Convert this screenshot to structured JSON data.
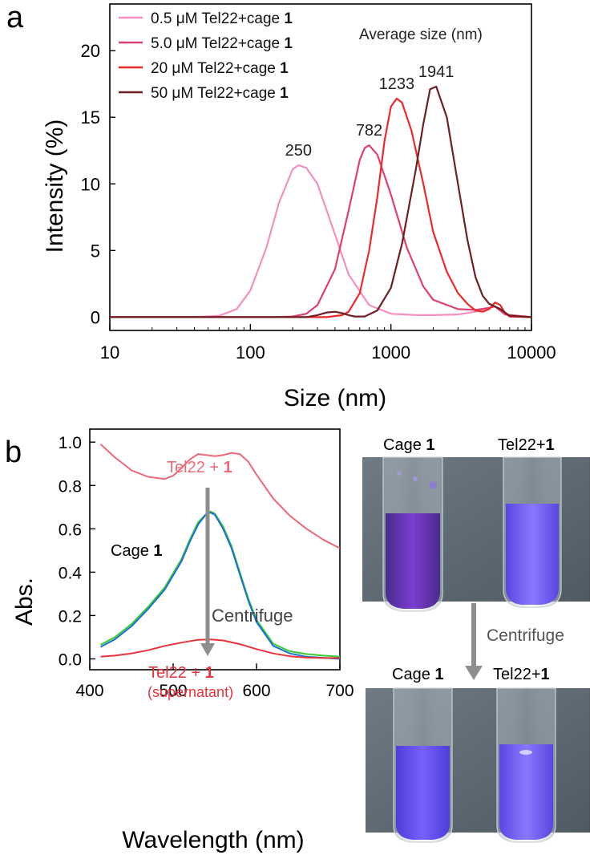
{
  "colors": {
    "s05": "#f58fbf",
    "s50": "#e0406f",
    "s20": "#ec2a2a",
    "s500": "#6e1f24",
    "tel22_plus_1": "#f06878",
    "cage1": "#1f6fd1",
    "cage1_green": "#33cc33",
    "supernatant": "#e8323c",
    "arrow": "#8e8e8e",
    "photo_bg": "#5f6b74"
  },
  "chart_data": [
    {
      "panel": "a",
      "type": "line",
      "xscale": "log",
      "xlabel": "Size (nm)",
      "ylabel": "Intensity (%)",
      "xlim": [
        10,
        10000
      ],
      "ylim": [
        -1,
        23.5
      ],
      "xticks": [
        "10",
        "100",
        "1000",
        "10000"
      ],
      "yticks": [
        "0",
        "5",
        "10",
        "15",
        "20"
      ],
      "legend_title": "Average size (nm)",
      "series": [
        {
          "name_pre": "0.5 μM Tel22+cage ",
          "name_bold": "1",
          "color_key": "s05",
          "peak_label": "250",
          "x": [
            10,
            40,
            60,
            80,
            100,
            130,
            160,
            200,
            220,
            250,
            300,
            400,
            500,
            700,
            1000,
            1500,
            2000,
            3000,
            4000,
            5000,
            5500,
            6000,
            7000,
            10000
          ],
          "y": [
            0,
            0,
            0.1,
            0.6,
            2.0,
            5.2,
            8.6,
            11.1,
            11.4,
            11.2,
            10.0,
            6.2,
            3.2,
            0.9,
            0.25,
            0.15,
            0.15,
            0.2,
            0.4,
            0.7,
            0.8,
            0.5,
            0.05,
            0
          ]
        },
        {
          "name_pre": "5.0 μM Tel22+cage ",
          "name_bold": "1",
          "color_key": "s50",
          "peak_label": "782",
          "x": [
            10,
            150,
            200,
            250,
            300,
            400,
            500,
            600,
            650,
            700,
            800,
            1000,
            1300,
            1700,
            2000,
            3000,
            4000,
            5000,
            5500,
            6500,
            10000
          ],
          "y": [
            0,
            0,
            0.05,
            0.25,
            0.9,
            3.6,
            8.0,
            11.8,
            12.7,
            12.9,
            12.2,
            9.2,
            5.2,
            2.3,
            1.3,
            0.6,
            0.55,
            0.7,
            0.8,
            0.2,
            0
          ]
        },
        {
          "name_pre": "20 μM Tel22+cage ",
          "name_bold": "1",
          "color_key": "s20",
          "peak_label": "1233",
          "x": [
            10,
            350,
            450,
            500,
            600,
            700,
            800,
            900,
            1000,
            1100,
            1200,
            1400,
            1700,
            2000,
            2500,
            3000,
            3500,
            4000,
            4500,
            5000,
            5500,
            6000,
            6500,
            7000,
            10000
          ],
          "y": [
            0,
            0,
            0.15,
            0.4,
            1.8,
            5.0,
            9.0,
            13.2,
            15.8,
            16.4,
            16.1,
            14.0,
            10.0,
            6.4,
            3.4,
            1.8,
            1.0,
            0.5,
            0.4,
            0.6,
            1.1,
            0.9,
            0.3,
            0.05,
            0
          ]
        },
        {
          "name_pre": "50 μM Tel22+cage ",
          "name_bold": "1",
          "color_key": "s500",
          "peak_label": "1941",
          "x": [
            10,
            250,
            300,
            350,
            400,
            450,
            500,
            550,
            650,
            800,
            1000,
            1200,
            1500,
            1700,
            1900,
            2100,
            2500,
            3000,
            3500,
            4000,
            4500,
            5000,
            5500,
            6000,
            7000,
            10000
          ],
          "y": [
            0,
            0,
            0.15,
            0.35,
            0.4,
            0.3,
            0.15,
            0.05,
            0.05,
            0.5,
            2.2,
            5.5,
            11.0,
            14.5,
            17.1,
            17.3,
            15.0,
            10.0,
            5.8,
            3.0,
            1.6,
            1.0,
            0.8,
            0.6,
            0.1,
            0
          ]
        }
      ]
    },
    {
      "panel": "b",
      "type": "line",
      "xlabel": "Wavelength (nm)",
      "ylabel": "Abs.",
      "xlim": [
        400,
        700
      ],
      "ylim": [
        -0.05,
        1.06
      ],
      "xticks": [
        "400",
        "500",
        "600",
        "700"
      ],
      "yticks": [
        "0.0",
        "0.2",
        "0.4",
        "0.6",
        "0.8",
        "1.0"
      ],
      "annotations": {
        "top_label_pre": "Tel22 + ",
        "top_label_bold": "1",
        "cage_label_pre": "Cage ",
        "cage_label_bold": "1",
        "centrifuge": "Centrifuge",
        "bottom_label_pre": "Tel22 + ",
        "bottom_label_bold": "1",
        "bottom_label_sub": "(supernatant)"
      },
      "series": [
        {
          "name": "Tel22 + 1",
          "color_key": "tel22_plus_1",
          "x": [
            413,
            430,
            450,
            470,
            490,
            500,
            510,
            520,
            530,
            540,
            550,
            560,
            570,
            580,
            590,
            600,
            620,
            640,
            660,
            680,
            700
          ],
          "y": [
            0.99,
            0.93,
            0.87,
            0.84,
            0.83,
            0.845,
            0.88,
            0.92,
            0.945,
            0.94,
            0.935,
            0.94,
            0.95,
            0.945,
            0.91,
            0.85,
            0.74,
            0.66,
            0.6,
            0.55,
            0.51
          ]
        },
        {
          "name": "Cage 1 (green)",
          "color_key": "cage1_green",
          "x": [
            413,
            430,
            450,
            470,
            490,
            510,
            520,
            530,
            540,
            545,
            550,
            560,
            570,
            580,
            590,
            600,
            620,
            640,
            660,
            680,
            700
          ],
          "y": [
            0.065,
            0.1,
            0.16,
            0.24,
            0.33,
            0.46,
            0.55,
            0.63,
            0.67,
            0.68,
            0.67,
            0.61,
            0.52,
            0.4,
            0.28,
            0.18,
            0.07,
            0.035,
            0.022,
            0.015,
            0.01
          ]
        },
        {
          "name": "Cage 1",
          "color_key": "cage1",
          "x": [
            413,
            430,
            450,
            470,
            490,
            510,
            520,
            530,
            540,
            545,
            550,
            560,
            570,
            580,
            590,
            600,
            620,
            640,
            660,
            680,
            700
          ],
          "y": [
            0.055,
            0.09,
            0.15,
            0.23,
            0.32,
            0.45,
            0.54,
            0.62,
            0.67,
            0.675,
            0.665,
            0.6,
            0.51,
            0.39,
            0.27,
            0.17,
            0.06,
            0.025,
            0.01,
            0.005,
            0.0
          ]
        },
        {
          "name": "Tel22 + 1 (supernatant)",
          "color_key": "supernatant",
          "x": [
            413,
            430,
            450,
            470,
            490,
            510,
            530,
            545,
            560,
            580,
            600,
            620,
            640,
            660,
            680,
            700
          ],
          "y": [
            0.01,
            0.015,
            0.025,
            0.04,
            0.06,
            0.075,
            0.088,
            0.09,
            0.085,
            0.068,
            0.045,
            0.025,
            0.012,
            0.006,
            0.004,
            0.004
          ]
        }
      ]
    }
  ],
  "panel_labels": {
    "a": "a",
    "b": "b"
  },
  "photos": {
    "top_left_pre": "Cage ",
    "top_left_bold": "1",
    "top_right": "Tel22+",
    "top_right_bold": "1",
    "centrifuge": "Centrifuge",
    "bottom_left_pre": "Cage ",
    "bottom_left_bold": "1",
    "bottom_right": "Tel22+",
    "bottom_right_bold": "1"
  }
}
